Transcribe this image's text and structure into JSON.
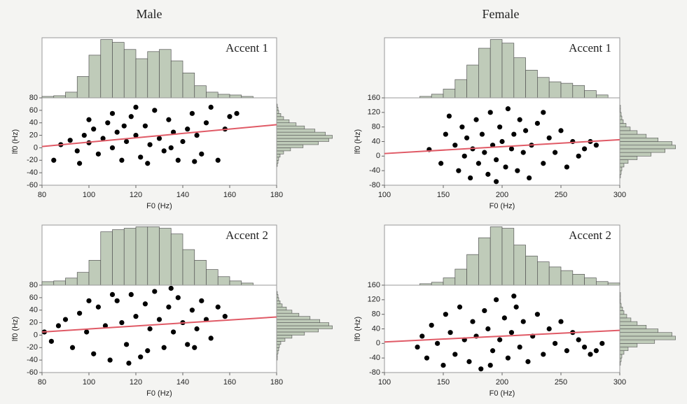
{
  "column_titles": [
    "Male",
    "Female"
  ],
  "chart_data": [
    {
      "type": "scatter",
      "annotation": "Accent 1",
      "x_label": "F0 (Hz)",
      "y_label": "lf0 (Hz)",
      "xlim": [
        80,
        180
      ],
      "ylim": [
        -60,
        80
      ],
      "xticks": [
        80,
        100,
        120,
        140,
        160,
        180
      ],
      "yticks": [
        -60,
        -40,
        -20,
        0,
        20,
        40,
        60,
        80
      ],
      "color": "#000000",
      "x": [
        85,
        88,
        92,
        95,
        98,
        100,
        102,
        104,
        106,
        108,
        110,
        112,
        114,
        116,
        118,
        120,
        122,
        124,
        126,
        128,
        130,
        132,
        134,
        136,
        138,
        140,
        142,
        144,
        146,
        148,
        150,
        152,
        155,
        158,
        160,
        163,
        100,
        110,
        120,
        96,
        115,
        125,
        135,
        145
      ],
      "y": [
        -20,
        5,
        12,
        -5,
        20,
        8,
        30,
        -10,
        15,
        40,
        0,
        25,
        -20,
        10,
        50,
        20,
        -15,
        35,
        5,
        60,
        15,
        -5,
        45,
        25,
        -20,
        10,
        30,
        55,
        20,
        -10,
        40,
        65,
        -20,
        30,
        50,
        55,
        45,
        55,
        65,
        -25,
        35,
        -25,
        0,
        -22
      ],
      "trend": {
        "color": "#e05a66",
        "x": [
          80,
          180
        ],
        "y": [
          2,
          37
        ]
      },
      "top_hist": {
        "color": "#bfcbb9",
        "bins": [
          80,
          85,
          90,
          95,
          100,
          105,
          110,
          115,
          120,
          125,
          130,
          135,
          140,
          145,
          150,
          155,
          160,
          165,
          170
        ],
        "counts": [
          2,
          3,
          8,
          30,
          60,
          82,
          78,
          68,
          55,
          65,
          68,
          52,
          35,
          17,
          8,
          5,
          4,
          2
        ]
      },
      "side_hist": {
        "color": "#bfcbb9",
        "bins": [
          -30,
          -25,
          -20,
          -15,
          -10,
          -5,
          0,
          5,
          10,
          15,
          20,
          25,
          30,
          35,
          40,
          45,
          50,
          55,
          60,
          65,
          70
        ],
        "counts": [
          1,
          2,
          3,
          5,
          10,
          20,
          38,
          60,
          75,
          80,
          70,
          55,
          40,
          28,
          18,
          10,
          6,
          3,
          2,
          1
        ]
      }
    },
    {
      "type": "scatter",
      "annotation": "Accent 1",
      "x_label": "F0 (Hz)",
      "y_label": "lf0 (Hz)",
      "xlim": [
        100,
        300
      ],
      "ylim": [
        -80,
        160
      ],
      "xticks": [
        100,
        150,
        200,
        250,
        300
      ],
      "yticks": [
        -80,
        -40,
        0,
        40,
        80,
        120,
        160
      ],
      "color": "#000000",
      "x": [
        138,
        148,
        152,
        155,
        160,
        163,
        166,
        168,
        170,
        173,
        175,
        178,
        180,
        183,
        185,
        188,
        190,
        192,
        195,
        198,
        200,
        203,
        205,
        208,
        210,
        213,
        215,
        218,
        220,
        223,
        225,
        230,
        235,
        240,
        245,
        250,
        255,
        260,
        265,
        270,
        275,
        280,
        235,
        195
      ],
      "y": [
        18,
        -20,
        60,
        110,
        30,
        -40,
        80,
        0,
        50,
        -60,
        20,
        100,
        -20,
        60,
        10,
        -50,
        120,
        30,
        -10,
        80,
        40,
        -30,
        130,
        20,
        60,
        -40,
        100,
        10,
        70,
        -60,
        30,
        90,
        -20,
        50,
        10,
        70,
        -30,
        40,
        0,
        20,
        40,
        30,
        120,
        -70
      ],
      "trend": {
        "color": "#e05a66",
        "x": [
          100,
          300
        ],
        "y": [
          7,
          45
        ]
      },
      "top_hist": {
        "color": "#bfcbb9",
        "bins": [
          130,
          140,
          150,
          160,
          170,
          180,
          190,
          200,
          210,
          220,
          230,
          240,
          250,
          260,
          270,
          280,
          290
        ],
        "counts": [
          2,
          5,
          12,
          25,
          45,
          68,
          80,
          75,
          55,
          38,
          28,
          22,
          20,
          17,
          10,
          4
        ]
      },
      "side_hist": {
        "color": "#bfcbb9",
        "bins": [
          -60,
          -50,
          -40,
          -30,
          -20,
          -10,
          0,
          10,
          20,
          30,
          40,
          50,
          60,
          70,
          80,
          90,
          100,
          110,
          120,
          130,
          140
        ],
        "counts": [
          1,
          2,
          3,
          6,
          12,
          25,
          45,
          65,
          80,
          75,
          55,
          38,
          25,
          15,
          9,
          5,
          3,
          2,
          1,
          1
        ]
      }
    },
    {
      "type": "scatter",
      "annotation": "Accent 2",
      "x_label": "F0 (Hz)",
      "y_label": "lf0 (Hz)",
      "xlim": [
        80,
        180
      ],
      "ylim": [
        -60,
        80
      ],
      "xticks": [
        80,
        100,
        120,
        140,
        160,
        180
      ],
      "yticks": [
        -60,
        -40,
        -20,
        0,
        20,
        40,
        60,
        80
      ],
      "color": "#000000",
      "x": [
        81,
        84,
        87,
        90,
        93,
        96,
        99,
        102,
        104,
        107,
        109,
        112,
        114,
        116,
        118,
        120,
        122,
        124,
        126,
        128,
        130,
        132,
        134,
        136,
        138,
        140,
        142,
        144,
        146,
        148,
        150,
        152,
        155,
        158,
        110,
        125,
        100,
        135,
        145,
        117
      ],
      "y": [
        5,
        -10,
        15,
        25,
        -20,
        35,
        5,
        -30,
        45,
        15,
        -40,
        55,
        20,
        -15,
        65,
        30,
        -35,
        50,
        10,
        70,
        25,
        -20,
        45,
        5,
        60,
        20,
        -15,
        40,
        10,
        55,
        25,
        -5,
        45,
        30,
        65,
        -25,
        55,
        75,
        -20,
        -45
      ],
      "trend": {
        "color": "#e05a66",
        "x": [
          80,
          180
        ],
        "y": [
          5,
          29
        ]
      },
      "top_hist": {
        "color": "#bfcbb9",
        "bins": [
          80,
          85,
          90,
          95,
          100,
          105,
          110,
          115,
          120,
          125,
          130,
          135,
          140,
          145,
          150,
          155,
          160,
          165,
          170
        ],
        "counts": [
          5,
          6,
          10,
          18,
          35,
          75,
          78,
          80,
          82,
          82,
          80,
          72,
          50,
          35,
          22,
          12,
          6,
          3
        ]
      },
      "side_hist": {
        "color": "#bfcbb9",
        "bins": [
          -40,
          -35,
          -30,
          -25,
          -20,
          -15,
          -10,
          -5,
          0,
          5,
          10,
          15,
          20,
          25,
          30,
          35,
          40,
          45,
          50,
          55,
          60,
          65,
          70
        ],
        "counts": [
          1,
          1,
          2,
          3,
          4,
          6,
          12,
          22,
          40,
          60,
          80,
          75,
          62,
          48,
          32,
          22,
          14,
          8,
          5,
          3,
          2,
          1
        ]
      }
    },
    {
      "type": "scatter",
      "annotation": "Accent 2",
      "x_label": "F0 (Hz)",
      "y_label": "lf0 (Hz)",
      "xlim": [
        100,
        300
      ],
      "ylim": [
        -80,
        160
      ],
      "xticks": [
        100,
        150,
        200,
        250,
        300
      ],
      "yticks": [
        -80,
        -40,
        0,
        40,
        80,
        120,
        160
      ],
      "color": "#000000",
      "x": [
        128,
        132,
        136,
        140,
        145,
        150,
        152,
        156,
        160,
        164,
        168,
        172,
        175,
        178,
        182,
        185,
        188,
        192,
        195,
        198,
        202,
        205,
        208,
        212,
        215,
        218,
        222,
        226,
        230,
        235,
        240,
        245,
        250,
        255,
        260,
        265,
        270,
        275,
        280,
        285,
        210,
        190
      ],
      "y": [
        -10,
        20,
        -40,
        50,
        0,
        -60,
        80,
        30,
        -30,
        100,
        10,
        -50,
        60,
        20,
        -70,
        90,
        40,
        -20,
        120,
        10,
        70,
        -40,
        30,
        100,
        -10,
        60,
        -50,
        20,
        80,
        -30,
        40,
        0,
        60,
        -20,
        30,
        10,
        -10,
        -30,
        -20,
        0,
        130,
        -60
      ],
      "trend": {
        "color": "#e05a66",
        "x": [
          100,
          300
        ],
        "y": [
          4,
          36
        ]
      },
      "top_hist": {
        "color": "#bfcbb9",
        "bins": [
          130,
          140,
          150,
          160,
          170,
          180,
          190,
          200,
          210,
          220,
          230,
          240,
          250,
          260,
          270,
          280,
          290,
          300
        ],
        "counts": [
          2,
          4,
          10,
          22,
          42,
          65,
          80,
          78,
          55,
          40,
          32,
          25,
          20,
          15,
          10,
          5,
          3
        ]
      },
      "side_hist": {
        "color": "#bfcbb9",
        "bins": [
          -60,
          -50,
          -40,
          -30,
          -20,
          -10,
          0,
          10,
          20,
          30,
          40,
          50,
          60,
          70,
          80,
          90,
          100,
          110,
          120,
          130,
          140
        ],
        "counts": [
          1,
          2,
          3,
          6,
          12,
          25,
          50,
          80,
          75,
          55,
          38,
          25,
          16,
          10,
          6,
          4,
          2,
          1,
          1,
          1
        ]
      }
    }
  ]
}
